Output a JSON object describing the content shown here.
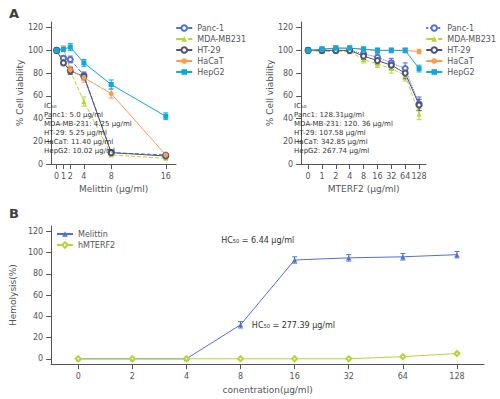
{
  "chart_data": [
    {
      "type": "line",
      "title": "A",
      "x": [
        0,
        1,
        2,
        4,
        8,
        16
      ],
      "xlim": [
        -0.8,
        17.5
      ],
      "xticks": [
        0,
        1,
        2,
        4,
        8,
        16
      ],
      "xlabel": "Melittin (μg/ml)",
      "ylabel": "% Cell viability",
      "ylim": [
        0,
        125
      ],
      "yticks": [
        0,
        20,
        40,
        60,
        80,
        100,
        120
      ],
      "grid": false,
      "legend": "right",
      "annotations": [
        "IC₅₀\nPanc1: 5.0 μg/ml\nMDA-MB-231: 4.25 μg/ml\nHT-29: 5.25 μg/ml\nHaCaT: 11.40 μg/ml\nHepG2: 10.02 μg/ml"
      ],
      "series": [
        {
          "name": "Panc-1",
          "marker": "circle-open",
          "line_style": "dashed",
          "values": [
            100,
            93,
            92,
            78,
            10,
            8
          ],
          "errors": [
            2,
            2,
            3,
            3,
            2,
            1
          ]
        },
        {
          "name": "MDA-MB231",
          "marker": "triangle",
          "line_style": "dashed",
          "values": [
            100,
            91,
            82,
            55,
            8,
            5
          ],
          "errors": [
            2,
            3,
            3,
            4,
            1,
            1
          ]
        },
        {
          "name": "HT-29",
          "marker": "circle-open",
          "line_style": "solid",
          "values": [
            100,
            89,
            82,
            77,
            10,
            7
          ],
          "errors": [
            2,
            2,
            3,
            3,
            2,
            1
          ]
        },
        {
          "name": "HaCaT",
          "marker": "circle",
          "line_style": "solid",
          "values": [
            100,
            102,
            83,
            76,
            62,
            8
          ],
          "errors": [
            2,
            2,
            3,
            4,
            4,
            1
          ]
        },
        {
          "name": "HepG2",
          "marker": "square",
          "line_style": "solid",
          "values": [
            100,
            101,
            103,
            89,
            70,
            42
          ],
          "errors": [
            2,
            2,
            3,
            3,
            4,
            3
          ]
        }
      ]
    },
    {
      "type": "line",
      "categories": [
        "0",
        "1",
        "2",
        "4",
        "8",
        "16",
        "32",
        "64",
        "128"
      ],
      "xlabel": "MTERF2 (μg/ml)",
      "ylabel": "% Cell viability",
      "ylim": [
        0,
        125
      ],
      "yticks": [
        0,
        20,
        40,
        60,
        80,
        100,
        120
      ],
      "grid": false,
      "legend": "right",
      "annotations": [
        "IC₅₀\nPanc1: 128.31μg/ml\nMDA-MB-231: 120. 36 μg/ml\nHT-29: 107.58 μg/ml\nHaCaT: 342.85 μg/ml\nHepG2: 267.74 μg/ml"
      ],
      "series": [
        {
          "name": "Panc-1",
          "marker": "circle-open",
          "line_style": "dotted",
          "values": [
            100,
            100,
            100,
            100,
            97,
            94,
            89,
            84,
            53
          ],
          "errors": [
            2,
            2,
            2,
            2,
            3,
            3,
            4,
            5,
            6
          ]
        },
        {
          "name": "MDA-MB231",
          "marker": "triangle",
          "line_style": "dashed",
          "values": [
            100,
            99,
            99,
            99,
            92,
            88,
            84,
            78,
            44
          ],
          "errors": [
            2,
            2,
            2,
            2,
            3,
            3,
            4,
            5,
            5
          ]
        },
        {
          "name": "HT-29",
          "marker": "circle-open",
          "line_style": "solid",
          "values": [
            100,
            100,
            100,
            100,
            95,
            91,
            87,
            80,
            52
          ],
          "errors": [
            2,
            2,
            2,
            2,
            3,
            3,
            4,
            5,
            5
          ]
        },
        {
          "name": "HaCaT",
          "marker": "circle",
          "line_style": "solid",
          "values": [
            100,
            101,
            102,
            102,
            101,
            100,
            100,
            100,
            99
          ],
          "errors": [
            2,
            2,
            2,
            2,
            2,
            2,
            2,
            2,
            2
          ]
        },
        {
          "name": "HepG2",
          "marker": "square",
          "line_style": "solid",
          "values": [
            100,
            101,
            102,
            102,
            101,
            100,
            100,
            100,
            84
          ],
          "errors": [
            2,
            2,
            2,
            2,
            2,
            2,
            2,
            2,
            3
          ]
        }
      ]
    },
    {
      "type": "line",
      "title": "B",
      "categories": [
        "0",
        "2",
        "4",
        "8",
        "16",
        "32",
        "64",
        "128"
      ],
      "xlabel": "conentration(μg/ml)",
      "ylabel": "Hemolysis(%)",
      "ylim": [
        -5,
        125
      ],
      "yticks": [
        0,
        20,
        40,
        60,
        80,
        100,
        120
      ],
      "grid": false,
      "legend": "upper left",
      "annotations": [
        "HC₅₀ = 6.44 μg/ml",
        "HC₅₀ = 277.39 μg/ml"
      ],
      "series": [
        {
          "name": "Melittin",
          "marker": "triangle",
          "line_style": "solid",
          "values": [
            0,
            0,
            0,
            32,
            93,
            95,
            96,
            98
          ],
          "errors": [
            0,
            0,
            1,
            3,
            3,
            3,
            3,
            3
          ]
        },
        {
          "name": "hMTERF2",
          "marker": "diamond-open",
          "line_style": "solid",
          "values": [
            0,
            0,
            0,
            0,
            0,
            0,
            2,
            5
          ],
          "errors": [
            0,
            0,
            0,
            0,
            0,
            0,
            1,
            1
          ]
        }
      ]
    }
  ]
}
